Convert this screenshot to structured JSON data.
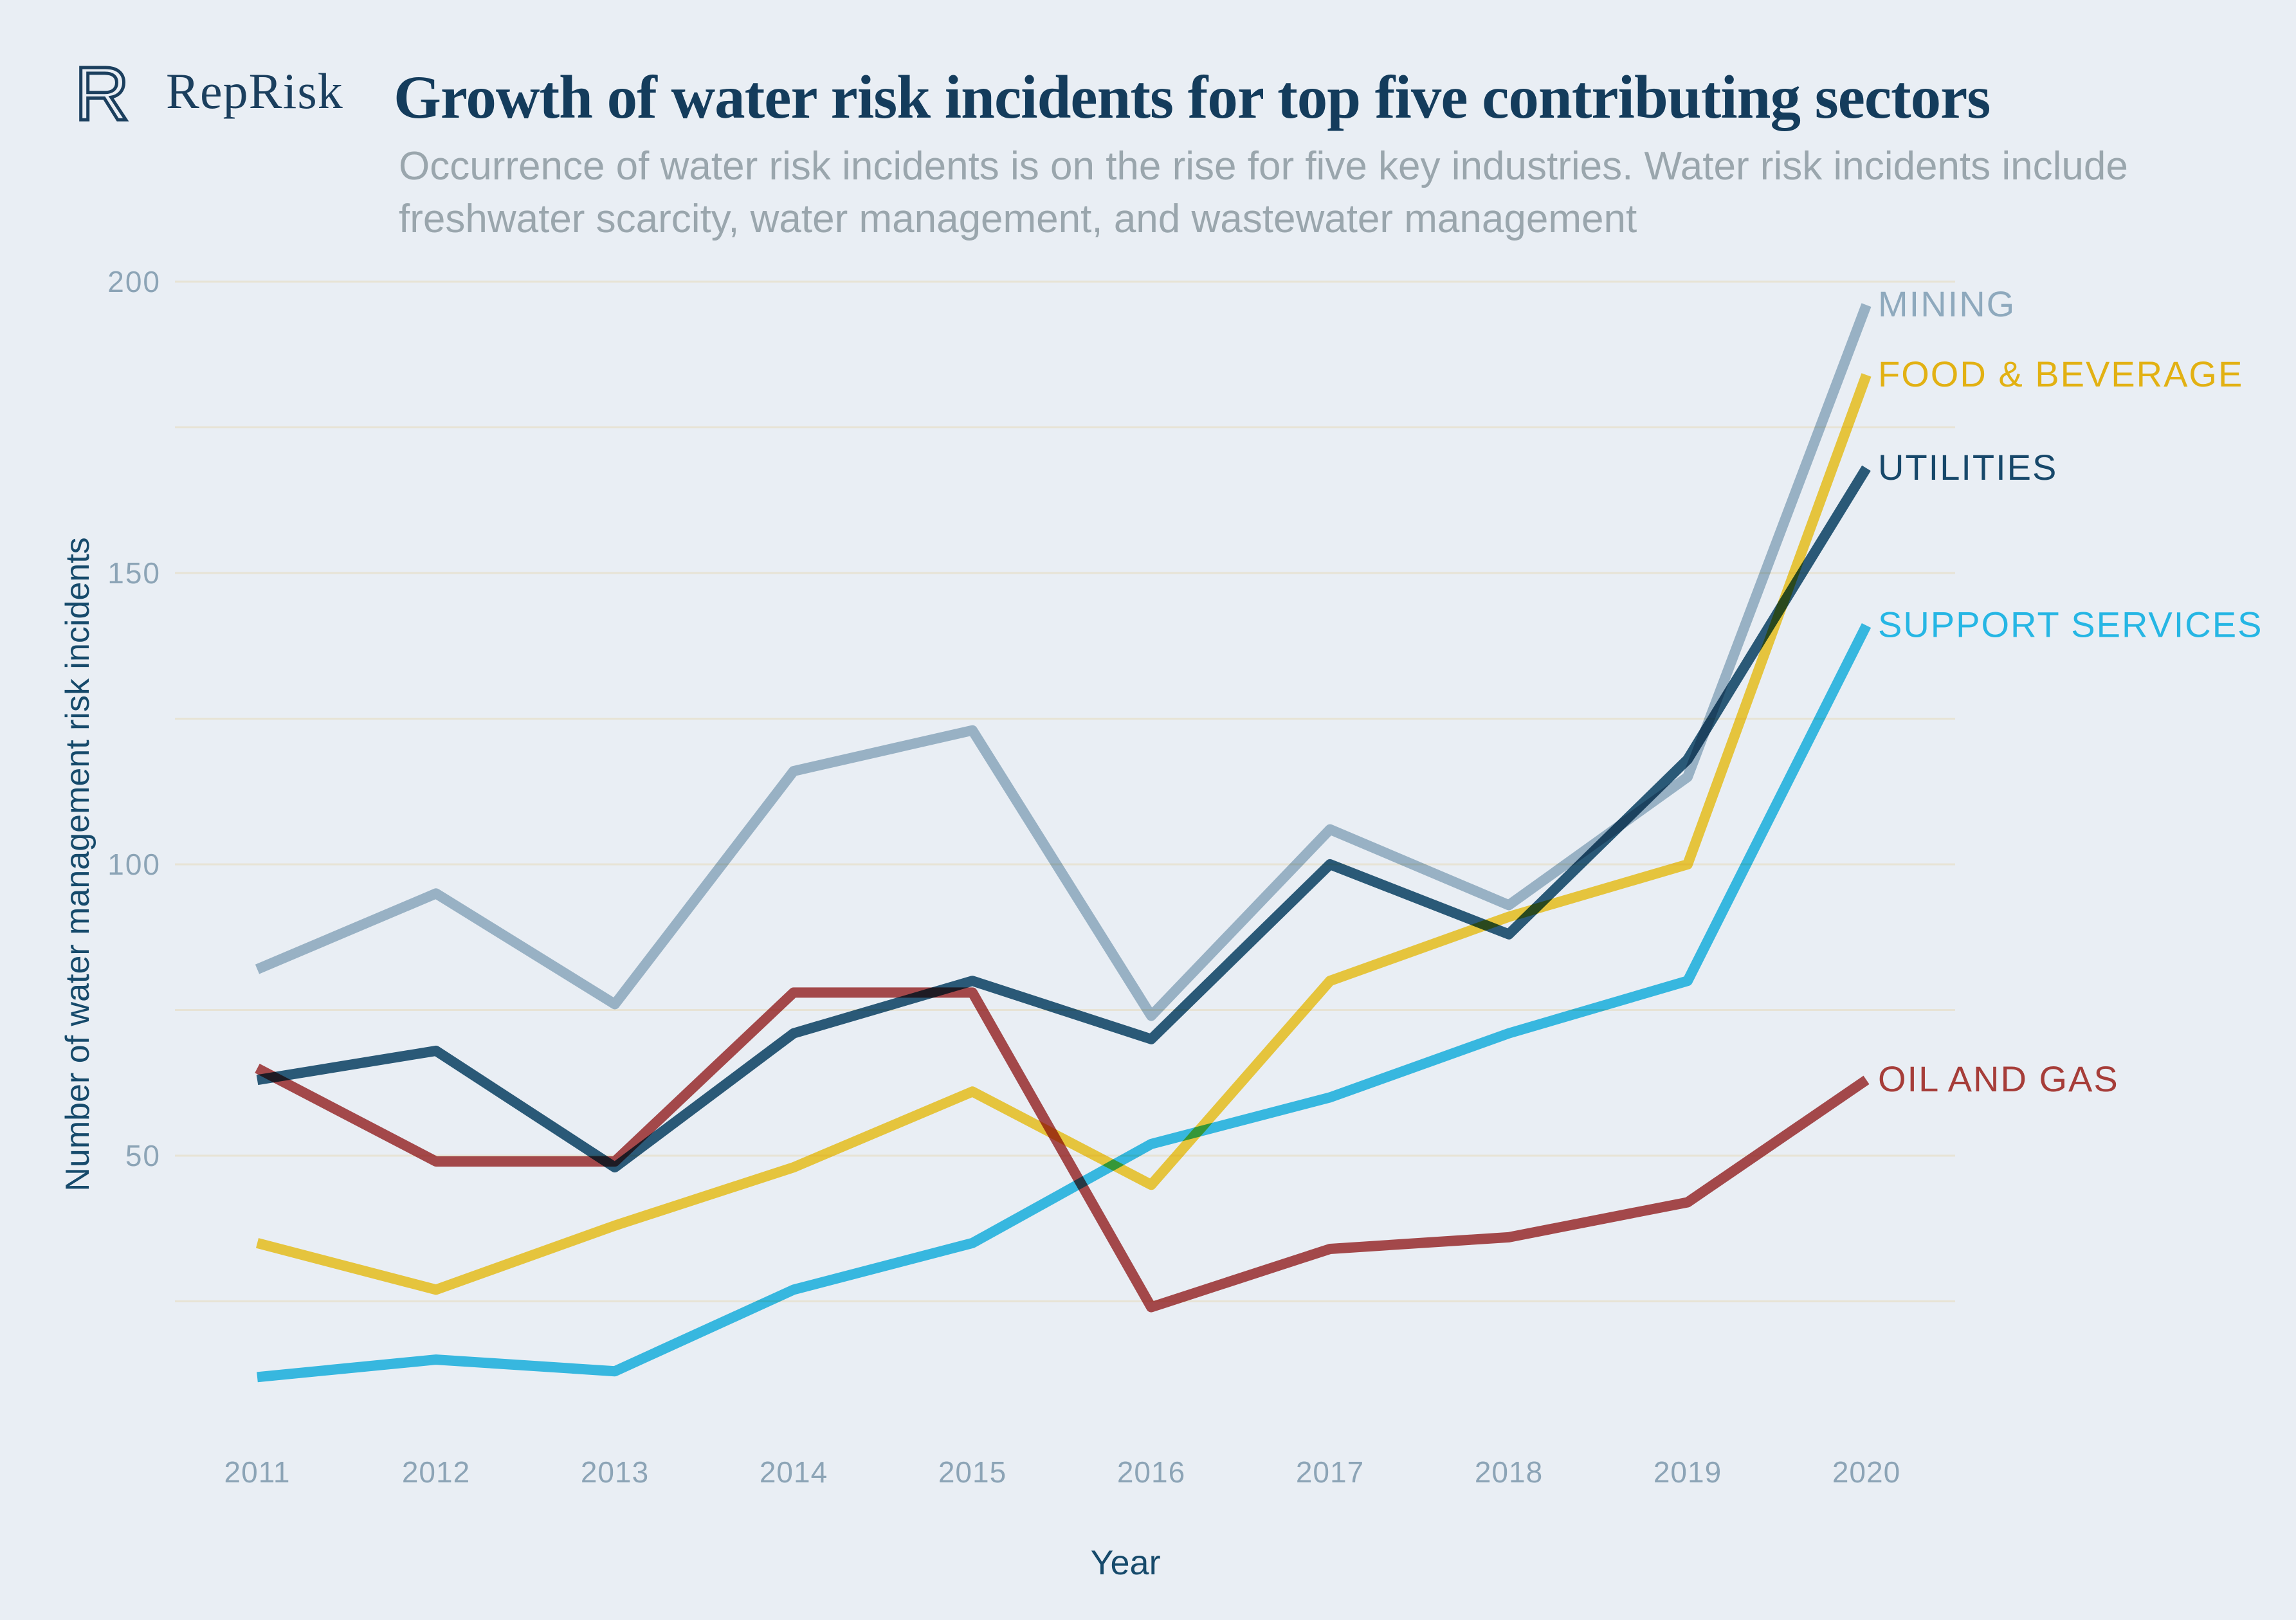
{
  "brand": {
    "name": "RepRisk"
  },
  "header": {
    "title": "Growth of water risk incidents for top five contributing sectors",
    "subtitle_line1": "Occurrence of water risk incidents is on the rise for five key industries. Water risk incidents include",
    "subtitle_line2": "freshwater scarcity, water management, and wastewater management"
  },
  "chart_data": {
    "type": "line",
    "title": "Growth of water risk incidents for top five contributing sectors",
    "xlabel": "Year",
    "ylabel": "Number of water management risk incidents",
    "x": [
      2011,
      2012,
      2013,
      2014,
      2015,
      2016,
      2017,
      2018,
      2019,
      2020
    ],
    "ylim": [
      0,
      210
    ],
    "yticks": [
      50,
      100,
      150,
      200
    ],
    "gridline_step": 25,
    "grid": true,
    "legend_position": "right of line ends, colored to match each series",
    "series": [
      {
        "name": "MINING",
        "color": "#a6becd",
        "label_color": "#8ea9bd",
        "values": [
          82,
          95,
          76,
          116,
          123,
          74,
          106,
          93,
          115,
          196
        ]
      },
      {
        "name": "FOOD & BEVERAGE",
        "color": "#fbd23f",
        "label_color": "#e2b113",
        "values": [
          35,
          27,
          38,
          48,
          61,
          45,
          80,
          91,
          100,
          184
        ]
      },
      {
        "name": "UTILITIES",
        "color": "#2e5f7c",
        "label_color": "#17486a",
        "values": [
          63,
          68,
          48,
          71,
          80,
          70,
          100,
          88,
          118,
          168
        ]
      },
      {
        "name": "SUPPORT SERVICES",
        "color": "#3cc4e9",
        "label_color": "#26b6e4",
        "values": [
          12,
          15,
          13,
          27,
          35,
          52,
          60,
          71,
          80,
          141
        ]
      },
      {
        "name": "OIL AND GAS",
        "color": "#b34d4d",
        "label_color": "#a63d39",
        "values": [
          65,
          49,
          49,
          78,
          78,
          24,
          34,
          36,
          42,
          63
        ]
      }
    ]
  },
  "colors": {
    "background": "#e9eef4",
    "title": "#143c5c",
    "subtitle": "#9aa6ad",
    "tick_label": "#8ca4b6",
    "axis_title": "#164a6b",
    "gridline": "#e7e3d5",
    "logo": "#1b3f5e"
  }
}
